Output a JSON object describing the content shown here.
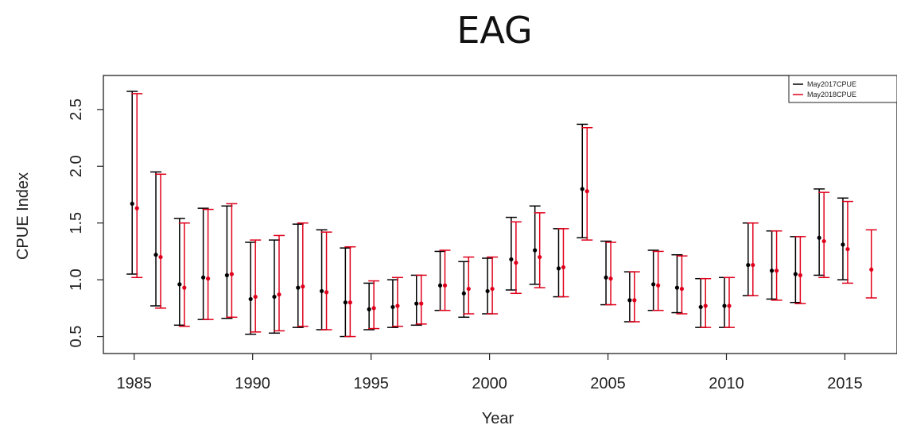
{
  "chart_data": {
    "type": "scatter",
    "title": "EAG",
    "xlabel": "Year",
    "ylabel": "CPUE Index",
    "xlim": [
      1983.7,
      2017.2
    ],
    "ylim": [
      0.35,
      2.8
    ],
    "xticks": [
      "1985",
      "1990",
      "1995",
      "2000",
      "2005",
      "2010",
      "2015"
    ],
    "yticks": [
      "0.5",
      "1.0",
      "1.5",
      "2.0",
      "2.5"
    ],
    "legend_position": "top-right",
    "series": [
      {
        "name": "May2017CPUE",
        "color": "#000000",
        "x": [
          1985,
          1986,
          1987,
          1988,
          1989,
          1990,
          1991,
          1992,
          1993,
          1994,
          1995,
          1996,
          1997,
          1998,
          1999,
          2000,
          2001,
          2002,
          2003,
          2004,
          2005,
          2006,
          2007,
          2008,
          2009,
          2010,
          2011,
          2012,
          2013,
          2014,
          2015
        ],
        "y": [
          1.67,
          1.22,
          0.96,
          1.02,
          1.04,
          0.83,
          0.85,
          0.93,
          0.9,
          0.8,
          0.74,
          0.76,
          0.79,
          0.95,
          0.88,
          0.9,
          1.18,
          1.26,
          1.1,
          1.8,
          1.02,
          0.82,
          0.96,
          0.93,
          0.76,
          0.77,
          1.13,
          1.08,
          1.05,
          1.37,
          1.31
        ],
        "lower": [
          1.05,
          0.77,
          0.6,
          0.65,
          0.66,
          0.52,
          0.53,
          0.58,
          0.56,
          0.5,
          0.56,
          0.58,
          0.6,
          0.73,
          0.67,
          0.7,
          0.91,
          0.96,
          0.85,
          1.37,
          0.78,
          0.63,
          0.73,
          0.71,
          0.58,
          0.58,
          0.86,
          0.83,
          0.8,
          1.04,
          1.0
        ],
        "upper": [
          2.66,
          1.95,
          1.54,
          1.63,
          1.65,
          1.33,
          1.35,
          1.49,
          1.44,
          1.28,
          0.97,
          1.0,
          1.04,
          1.25,
          1.16,
          1.19,
          1.55,
          1.65,
          1.45,
          2.37,
          1.34,
          1.07,
          1.26,
          1.22,
          1.01,
          1.02,
          1.5,
          1.43,
          1.38,
          1.8,
          1.72
        ]
      },
      {
        "name": "May2018CPUE",
        "color": "#e0001b",
        "x": [
          1985,
          1986,
          1987,
          1988,
          1989,
          1990,
          1991,
          1992,
          1993,
          1994,
          1995,
          1996,
          1997,
          1998,
          1999,
          2000,
          2001,
          2002,
          2003,
          2004,
          2005,
          2006,
          2007,
          2008,
          2009,
          2010,
          2011,
          2012,
          2013,
          2014,
          2015,
          2016
        ],
        "y": [
          1.63,
          1.2,
          0.93,
          1.01,
          1.05,
          0.85,
          0.87,
          0.94,
          0.89,
          0.8,
          0.75,
          0.77,
          0.79,
          0.95,
          0.92,
          0.92,
          1.15,
          1.2,
          1.11,
          1.78,
          1.01,
          0.82,
          0.95,
          0.92,
          0.77,
          0.77,
          1.13,
          1.08,
          1.04,
          1.34,
          1.27,
          1.09
        ],
        "lower": [
          1.02,
          0.75,
          0.59,
          0.65,
          0.67,
          0.54,
          0.55,
          0.59,
          0.56,
          0.5,
          0.57,
          0.59,
          0.61,
          0.73,
          0.7,
          0.7,
          0.88,
          0.93,
          0.85,
          1.35,
          0.78,
          0.63,
          0.73,
          0.7,
          0.58,
          0.58,
          0.86,
          0.82,
          0.79,
          1.02,
          0.97,
          0.84
        ],
        "upper": [
          2.64,
          1.93,
          1.5,
          1.62,
          1.67,
          1.35,
          1.39,
          1.5,
          1.42,
          1.29,
          0.99,
          1.02,
          1.04,
          1.26,
          1.2,
          1.2,
          1.51,
          1.59,
          1.45,
          2.34,
          1.33,
          1.07,
          1.25,
          1.21,
          1.01,
          1.02,
          1.5,
          1.43,
          1.38,
          1.77,
          1.69,
          1.44
        ]
      }
    ]
  }
}
